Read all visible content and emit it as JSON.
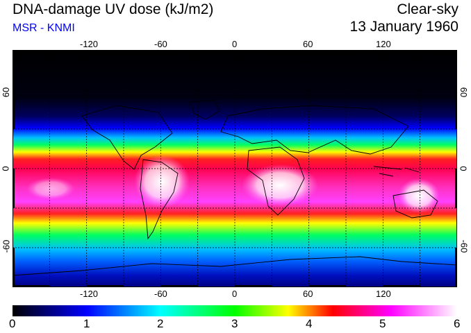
{
  "header": {
    "title": "DNA-damage UV dose (kJ/m2)",
    "source": "MSR - KNMI",
    "sky": "Clear-sky",
    "date": "13 January 1960"
  },
  "map": {
    "lon_ticks_top": [
      "-120",
      "-60",
      "0",
      "60",
      "120"
    ],
    "lon_ticks_bottom": [
      "-120",
      "-60",
      "0",
      "60",
      "120"
    ],
    "lat_ticks_left": [
      "60",
      "0",
      "-60"
    ],
    "lat_ticks_right": [
      "60",
      "0",
      "-60"
    ],
    "lon_range": [
      -180,
      180
    ],
    "lat_range": [
      -90,
      90
    ],
    "gridlines": "dashed every 30 degrees"
  },
  "colorbar": {
    "labels": [
      "0",
      "1",
      "2",
      "3",
      "4",
      "5",
      "6"
    ],
    "range": [
      0,
      6
    ],
    "colors": [
      "#000000",
      "#0000ff",
      "#00ffff",
      "#00ff00",
      "#ffff00",
      "#ff0000",
      "#ff00ff",
      "#ffffff"
    ]
  }
}
